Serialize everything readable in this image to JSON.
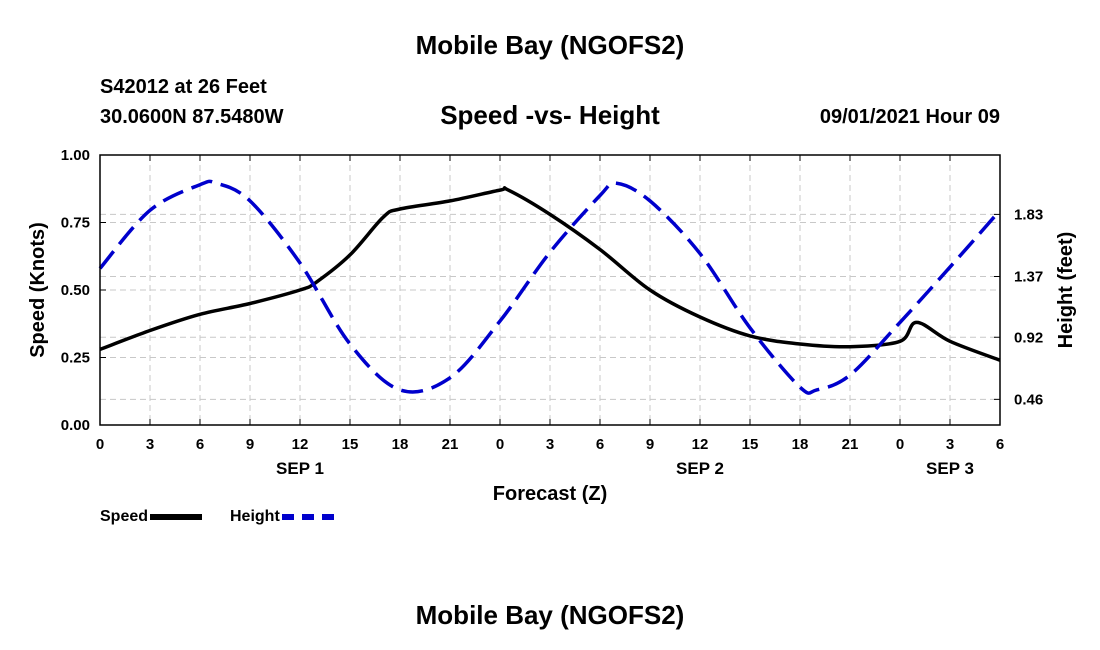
{
  "header": {
    "title": "Mobile Bay (NGOFS2)",
    "station": "S42012 at 26 Feet",
    "coords": "30.0600N  87.5480W",
    "chart_title": "Speed -vs- Height",
    "datestamp": "09/01/2021 Hour 09"
  },
  "footer": {
    "title": "Mobile Bay (NGOFS2)"
  },
  "legend": {
    "speed_label": "Speed",
    "height_label": "Height"
  },
  "colors": {
    "speed": "#000000",
    "height": "#0000cc",
    "grid": "#c8c8c8"
  },
  "chart_data": {
    "type": "line",
    "title": "Speed -vs- Height",
    "xlabel": "Forecast (Z)",
    "ylabel_left": "Speed (Knots)",
    "ylabel_right": "Height (feet)",
    "x_ticks": [
      "0",
      "3",
      "6",
      "9",
      "12",
      "15",
      "18",
      "21",
      "0",
      "3",
      "6",
      "9",
      "12",
      "15",
      "18",
      "21",
      "0",
      "3",
      "6"
    ],
    "date_labels": [
      {
        "label": "SEP 1",
        "at_hour": 12
      },
      {
        "label": "SEP 2",
        "at_hour": 36
      },
      {
        "label": "SEP 3",
        "at_hour": 51
      }
    ],
    "xlim_hours": [
      0,
      54
    ],
    "ylim_left": [
      0,
      1.0
    ],
    "y_ticks_left": [
      "0.00",
      "0.25",
      "0.50",
      "0.75",
      "1.00"
    ],
    "ylim_right": [
      0.27,
      2.27
    ],
    "y_ticks_right": [
      0.46,
      0.92,
      1.37,
      1.83
    ],
    "y_tick_labels_right": [
      "0.46",
      "0.92",
      "1.37",
      "1.83"
    ],
    "grid": true,
    "legend_placement": "bottom-left",
    "series": [
      {
        "name": "Speed",
        "axis": "left",
        "style": "solid",
        "hours": [
          0,
          3,
          6,
          9,
          12,
          13,
          15,
          17,
          18,
          21,
          24,
          24.5,
          27,
          30,
          33,
          36,
          39,
          42,
          45,
          48,
          49,
          51,
          54
        ],
        "values": [
          0.28,
          0.35,
          0.41,
          0.45,
          0.5,
          0.53,
          0.63,
          0.77,
          0.8,
          0.83,
          0.87,
          0.87,
          0.78,
          0.65,
          0.5,
          0.4,
          0.33,
          0.3,
          0.29,
          0.31,
          0.38,
          0.31,
          0.24
        ]
      },
      {
        "name": "Height",
        "axis": "right",
        "style": "dashed",
        "hours": [
          0,
          3,
          6,
          7,
          9,
          12,
          15,
          18,
          21,
          24,
          27,
          30,
          31,
          33,
          36,
          39,
          42,
          43,
          45,
          48,
          51,
          54
        ],
        "values": [
          1.43,
          1.86,
          2.05,
          2.06,
          1.93,
          1.47,
          0.87,
          0.53,
          0.62,
          1.04,
          1.55,
          1.97,
          2.06,
          1.93,
          1.54,
          0.99,
          0.55,
          0.53,
          0.64,
          1.03,
          1.44,
          1.86
        ]
      }
    ]
  }
}
